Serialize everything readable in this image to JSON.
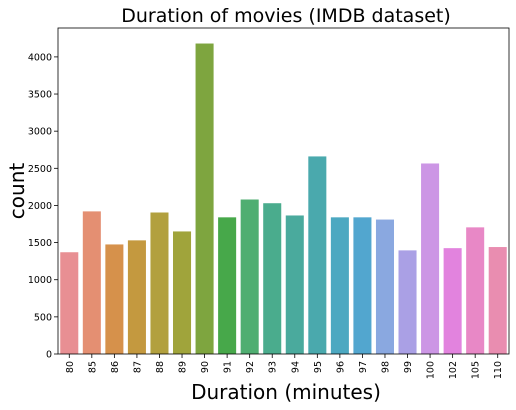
{
  "chart_data": {
    "type": "bar",
    "title": "Duration of movies (IMDB dataset)",
    "xlabel": "Duration (minutes)",
    "ylabel": "count",
    "categories": [
      "80",
      "85",
      "86",
      "87",
      "88",
      "89",
      "90",
      "91",
      "92",
      "93",
      "94",
      "95",
      "96",
      "97",
      "98",
      "99",
      "100",
      "102",
      "105",
      "110"
    ],
    "values": [
      1370,
      1920,
      1475,
      1530,
      1905,
      1650,
      4180,
      1840,
      2080,
      2030,
      1865,
      2660,
      1840,
      1840,
      1810,
      1395,
      2565,
      1425,
      1705,
      1440
    ],
    "colors": [
      "#e88f93",
      "#e48f72",
      "#d6914b",
      "#c4993f",
      "#b2a03e",
      "#a0a43b",
      "#7ea53f",
      "#47a84a",
      "#4fae71",
      "#4aac8d",
      "#4aaa9d",
      "#4aa9ad",
      "#4ca8c1",
      "#52a6cf",
      "#8aa8e0",
      "#aaa0e5",
      "#cc96e5",
      "#e283de",
      "#e888c6",
      "#e98db0"
    ],
    "yticks": [
      0,
      500,
      1000,
      1500,
      2000,
      2500,
      3000,
      3500,
      4000
    ],
    "ylim": [
      0,
      4389
    ],
    "grid": false
  }
}
